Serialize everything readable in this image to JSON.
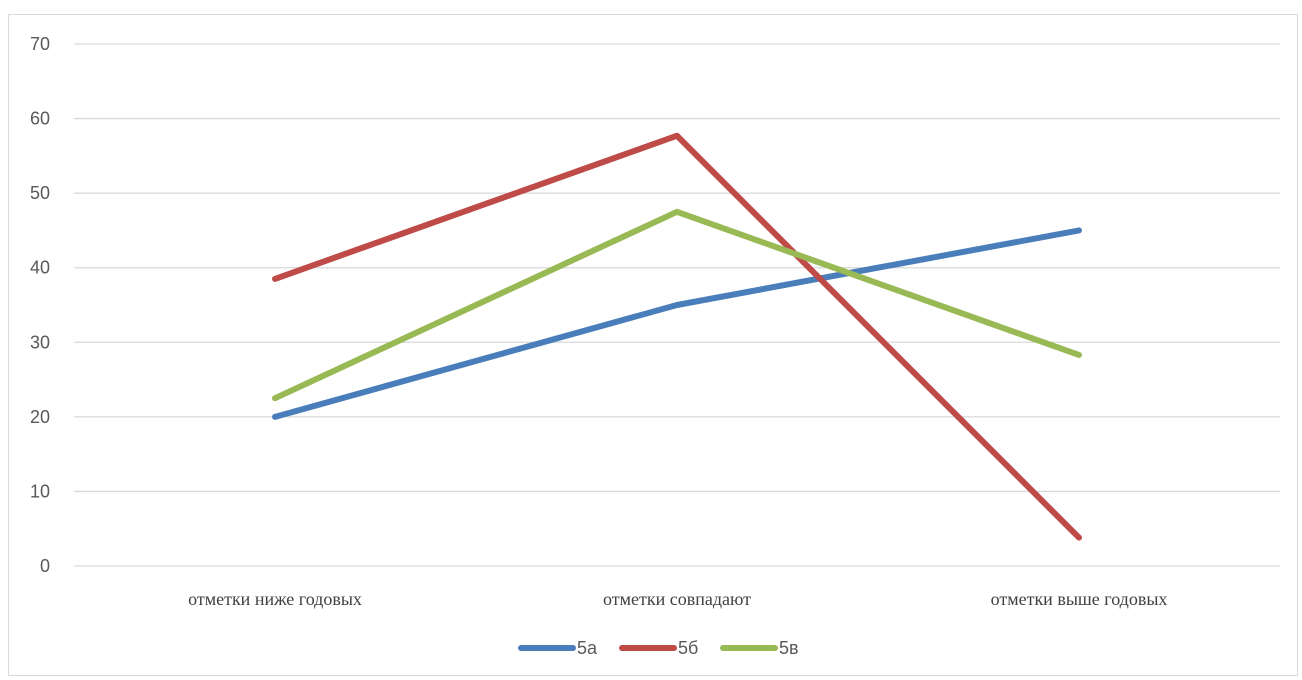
{
  "chart_data": {
    "type": "line",
    "categories": [
      "отметки ниже годовых",
      "отметки совпадают",
      "отметки выше годовых"
    ],
    "series": [
      {
        "name": "5а",
        "values": [
          20,
          35,
          45
        ],
        "color": "#4a7ebb"
      },
      {
        "name": "5б",
        "values": [
          38.5,
          57.7,
          3.8
        ],
        "color": "#be4b48"
      },
      {
        "name": "5в",
        "values": [
          22.5,
          47.5,
          28.3
        ],
        "color": "#98b954"
      }
    ],
    "ylim": [
      0,
      70
    ],
    "yticks": [
      0,
      10,
      20,
      30,
      40,
      50,
      60,
      70
    ],
    "grid": true,
    "legend": "bottom"
  }
}
